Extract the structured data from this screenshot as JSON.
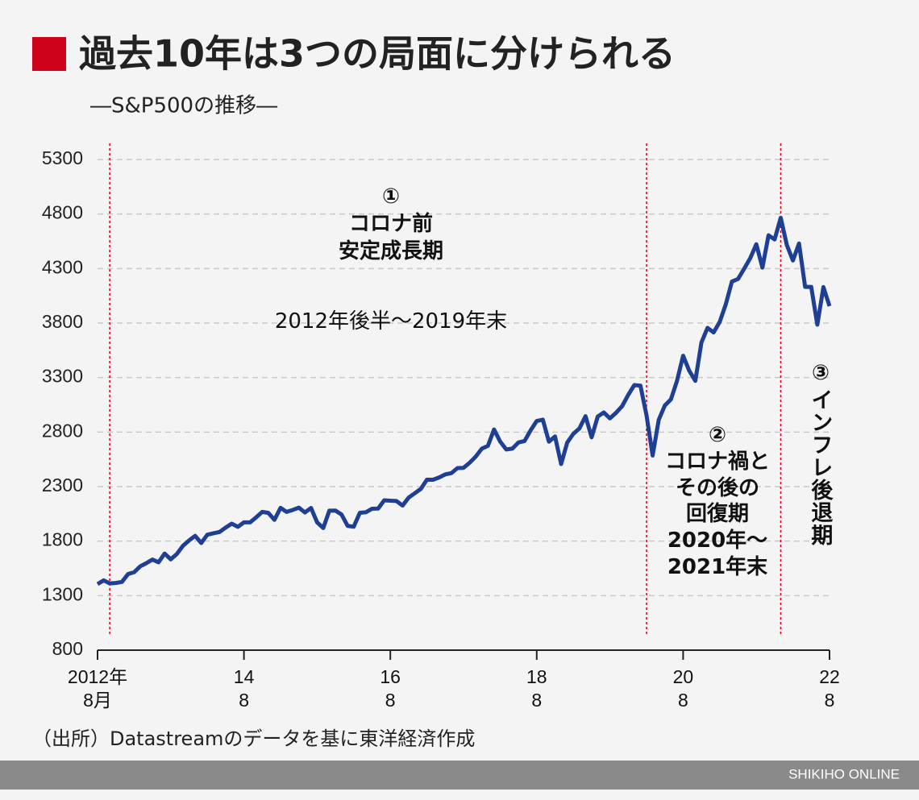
{
  "chart_data": {
    "type": "line",
    "title": "過去10年は3つの局面に分けられる",
    "subtitle": "―S&P500の推移―",
    "source": "（出所）Datastreamのデータを基に東洋経済作成",
    "brand": "SHIKIHO ONLINE",
    "annotations": [
      "①\nコロナ前\n安定成長期",
      "2012年後半～2019年末",
      "②\nコロナ禍と\nその後の\n回復期\n2020年～\n2021年末",
      "③",
      "インフレ後退期"
    ],
    "phase_lines": [
      "2012-10",
      "2020-02",
      "2021-12"
    ],
    "x": [
      "2012-08",
      "2012-09",
      "2012-10",
      "2012-11",
      "2012-12",
      "2013-01",
      "2013-02",
      "2013-03",
      "2013-04",
      "2013-05",
      "2013-06",
      "2013-07",
      "2013-08",
      "2013-09",
      "2013-10",
      "2013-11",
      "2013-12",
      "2014-01",
      "2014-02",
      "2014-03",
      "2014-04",
      "2014-05",
      "2014-06",
      "2014-07",
      "2014-08",
      "2014-09",
      "2014-10",
      "2014-11",
      "2014-12",
      "2015-01",
      "2015-02",
      "2015-03",
      "2015-04",
      "2015-05",
      "2015-06",
      "2015-07",
      "2015-08",
      "2015-09",
      "2015-10",
      "2015-11",
      "2015-12",
      "2016-01",
      "2016-02",
      "2016-03",
      "2016-04",
      "2016-05",
      "2016-06",
      "2016-07",
      "2016-08",
      "2016-09",
      "2016-10",
      "2016-11",
      "2016-12",
      "2017-01",
      "2017-02",
      "2017-03",
      "2017-04",
      "2017-05",
      "2017-06",
      "2017-07",
      "2017-08",
      "2017-09",
      "2017-10",
      "2017-11",
      "2017-12",
      "2018-01",
      "2018-02",
      "2018-03",
      "2018-04",
      "2018-05",
      "2018-06",
      "2018-07",
      "2018-08",
      "2018-09",
      "2018-10",
      "2018-11",
      "2018-12",
      "2019-01",
      "2019-02",
      "2019-03",
      "2019-04",
      "2019-05",
      "2019-06",
      "2019-07",
      "2019-08",
      "2019-09",
      "2019-10",
      "2019-11",
      "2019-12",
      "2020-01",
      "2020-02",
      "2020-03",
      "2020-04",
      "2020-05",
      "2020-06",
      "2020-07",
      "2020-08",
      "2020-09",
      "2020-10",
      "2020-11",
      "2020-12",
      "2021-01",
      "2021-02",
      "2021-03",
      "2021-04",
      "2021-05",
      "2021-06",
      "2021-07",
      "2021-08",
      "2021-09",
      "2021-10",
      "2021-11",
      "2021-12",
      "2022-01",
      "2022-02",
      "2022-03",
      "2022-04",
      "2022-05",
      "2022-06",
      "2022-07",
      "2022-08"
    ],
    "series": [
      {
        "name": "S&P500",
        "color": "#1f3f94",
        "values": [
          1406,
          1440,
          1412,
          1416,
          1426,
          1498,
          1515,
          1569,
          1598,
          1631,
          1606,
          1686,
          1633,
          1682,
          1757,
          1806,
          1848,
          1783,
          1859,
          1872,
          1884,
          1924,
          1960,
          1931,
          1972,
          1972,
          2018,
          2068,
          2059,
          1995,
          2105,
          2068,
          2086,
          2107,
          2063,
          2104,
          1972,
          1920,
          2079,
          2080,
          2044,
          1940,
          1932,
          2060,
          2065,
          2097,
          2099,
          2174,
          2171,
          2168,
          2126,
          2199,
          2239,
          2279,
          2364,
          2363,
          2384,
          2412,
          2423,
          2470,
          2472,
          2519,
          2575,
          2648,
          2674,
          2824,
          2714,
          2641,
          2648,
          2705,
          2718,
          2816,
          2902,
          2914,
          2712,
          2760,
          2507,
          2704,
          2784,
          2834,
          2946,
          2752,
          2942,
          2980,
          2926,
          2977,
          3038,
          3141,
          3231,
          3226,
          2954,
          2585,
          2912,
          3044,
          3100,
          3271,
          3500,
          3363,
          3270,
          3622,
          3756,
          3714,
          3811,
          3973,
          4181,
          4204,
          4298,
          4395,
          4523,
          4308,
          4605,
          4567,
          4766,
          4516,
          4374,
          4530,
          4132,
          4132,
          3785,
          4130,
          3955
        ]
      }
    ],
    "xlim": [
      "2012-08",
      "2022-08"
    ],
    "xticks": [
      {
        "value": "2012-08",
        "label": "2012年\n8月"
      },
      {
        "value": "2014-08",
        "label": "14\n8"
      },
      {
        "value": "2016-08",
        "label": "16\n8"
      },
      {
        "value": "2018-08",
        "label": "18\n8"
      },
      {
        "value": "2020-08",
        "label": "20\n8"
      },
      {
        "value": "2022-08",
        "label": "22\n8"
      }
    ],
    "ylim": [
      800,
      5300
    ],
    "yticks": [
      800,
      1300,
      1800,
      2300,
      2800,
      3300,
      3800,
      4300,
      4800,
      5300
    ],
    "grid": true
  }
}
